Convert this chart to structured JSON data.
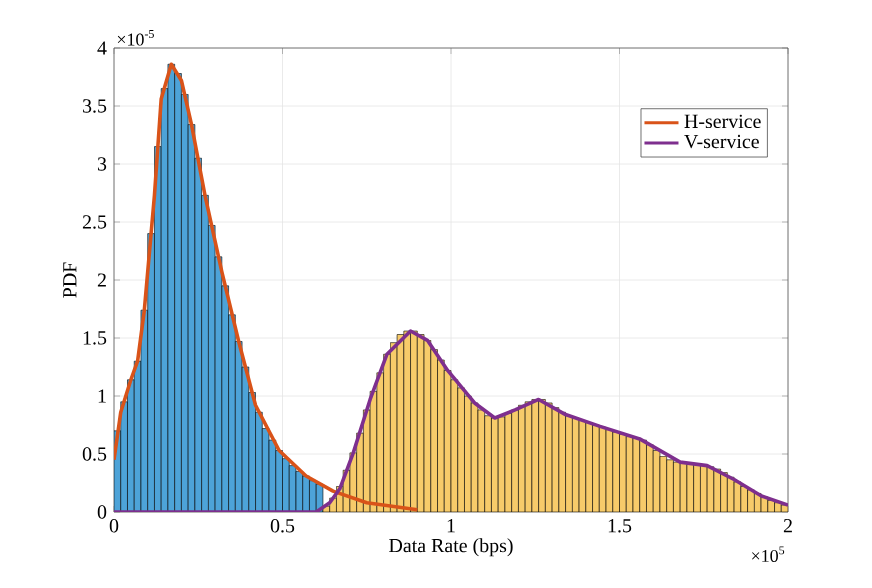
{
  "chart_data": {
    "type": "histogram",
    "xlabel": "Data Rate (bps)",
    "ylabel": "PDF",
    "annotations": [
      "×10$^{-5}$",
      "×10$^{5}$"
    ],
    "bins": [
      0,
      0.02,
      0.04,
      0.06,
      0.08,
      0.1,
      0.12,
      0.14,
      0.16,
      0.18,
      0.2,
      0.22,
      0.24,
      0.26,
      0.28,
      0.3,
      0.32,
      0.34,
      0.36,
      0.38,
      0.4,
      0.42,
      0.44,
      0.46,
      0.48,
      0.5,
      0.52,
      0.54,
      0.56,
      0.58,
      0.6,
      0.62,
      0.64,
      0.66,
      0.68,
      0.7,
      0.72,
      0.74,
      0.76,
      0.78,
      0.8,
      0.82,
      0.84,
      0.86,
      0.88,
      0.9,
      0.92,
      0.94,
      0.96,
      0.98,
      1.0,
      1.02,
      1.04,
      1.06,
      1.08,
      1.1,
      1.12,
      1.14,
      1.16,
      1.18,
      1.2,
      1.22,
      1.24,
      1.26,
      1.28,
      1.3,
      1.32,
      1.34,
      1.36,
      1.38,
      1.4,
      1.42,
      1.44,
      1.46,
      1.48,
      1.5,
      1.52,
      1.54,
      1.56,
      1.58,
      1.6,
      1.62,
      1.64,
      1.66,
      1.68,
      1.7,
      1.72,
      1.74,
      1.76,
      1.78,
      1.8,
      1.82,
      1.84,
      1.86,
      1.88,
      1.9,
      1.92,
      1.94,
      1.96,
      1.98,
      2.0
    ],
    "series": [
      {
        "color": "#4da3d8",
        "values": [
          0.7,
          0.95,
          1.14,
          1.3,
          1.74,
          2.4,
          3.15,
          3.65,
          3.86,
          3.78,
          3.6,
          3.34,
          3.05,
          2.73,
          2.47,
          2.2,
          1.95,
          1.7,
          1.47,
          1.25,
          1.03,
          0.86,
          0.72,
          0.62,
          0.53,
          0.46,
          0.4,
          0.35,
          0.31,
          0.27,
          0.24,
          null,
          null,
          null,
          null,
          null,
          null,
          null,
          null,
          null,
          null,
          null,
          null,
          null,
          null,
          null,
          null,
          null,
          null,
          null,
          null,
          null,
          null,
          null,
          null,
          null,
          null,
          null,
          null,
          null,
          null,
          null,
          null,
          null,
          null,
          null,
          null,
          null,
          null,
          null,
          null,
          null,
          null,
          null,
          null,
          null,
          null,
          null,
          null,
          null,
          null,
          null,
          null,
          null,
          null,
          null,
          null,
          null,
          null,
          null,
          null,
          null,
          null,
          null,
          null,
          null,
          null,
          null,
          null,
          null
        ]
      },
      {
        "color": "#f7cb6a",
        "values": [
          null,
          null,
          null,
          null,
          null,
          null,
          null,
          null,
          null,
          null,
          null,
          null,
          null,
          null,
          null,
          null,
          null,
          null,
          null,
          null,
          null,
          null,
          null,
          null,
          null,
          null,
          null,
          null,
          null,
          null,
          null,
          0.05,
          0.12,
          0.22,
          0.36,
          0.51,
          0.68,
          0.88,
          1.04,
          1.2,
          1.36,
          1.46,
          1.53,
          1.56,
          1.56,
          1.53,
          1.48,
          1.4,
          1.31,
          1.22,
          1.14,
          1.07,
          1.0,
          0.94,
          0.88,
          0.83,
          0.81,
          0.82,
          0.85,
          0.88,
          0.92,
          0.95,
          0.97,
          0.97,
          0.94,
          0.9,
          0.86,
          0.83,
          0.81,
          0.79,
          0.77,
          0.75,
          0.73,
          0.71,
          0.69,
          0.67,
          0.65,
          0.64,
          0.62,
          0.58,
          0.53,
          0.48,
          0.45,
          0.43,
          0.42,
          0.41,
          0.41,
          0.4,
          0.39,
          0.37,
          0.34,
          0.3,
          0.26,
          0.22,
          0.19,
          0.16,
          0.13,
          0.1,
          0.08,
          0.06
        ]
      },
      {
        "type": "line",
        "name": "H-service",
        "color": "#d95319",
        "x": [
          0,
          0.02,
          0.05,
          0.07,
          0.09,
          0.12,
          0.14,
          0.17,
          0.2,
          0.23,
          0.27,
          0.32,
          0.37,
          0.42,
          0.49,
          0.57,
          0.65,
          0.75,
          0.9
        ],
        "values": [
          0.45,
          0.86,
          1.14,
          1.3,
          1.74,
          2.73,
          3.56,
          3.86,
          3.72,
          3.34,
          2.73,
          2.07,
          1.47,
          0.92,
          0.53,
          0.31,
          0.18,
          0.08,
          0.02
        ]
      },
      {
        "type": "line",
        "name": "V-service",
        "color": "#7e2f8e",
        "x": [
          0,
          0.6,
          0.64,
          0.67,
          0.71,
          0.76,
          0.81,
          0.88,
          0.93,
          0.99,
          1.07,
          1.13,
          1.19,
          1.26,
          1.34,
          1.44,
          1.56,
          1.68,
          1.76,
          1.84,
          1.92,
          2.0
        ],
        "values": [
          0,
          0,
          0.08,
          0.2,
          0.51,
          0.97,
          1.36,
          1.56,
          1.48,
          1.22,
          0.94,
          0.81,
          0.88,
          0.97,
          0.84,
          0.74,
          0.63,
          0.43,
          0.4,
          0.28,
          0.14,
          0.06
        ]
      }
    ],
    "xlim": [
      0,
      2
    ],
    "ylim": [
      0,
      4
    ],
    "xticks": [
      0,
      0.5,
      1,
      1.5,
      2
    ],
    "yticks": [
      0,
      0.5,
      1,
      1.5,
      2,
      2.5,
      3,
      3.5,
      4
    ],
    "grid": true,
    "legend": "top right",
    "marker": "none",
    "line_style": "solid"
  }
}
